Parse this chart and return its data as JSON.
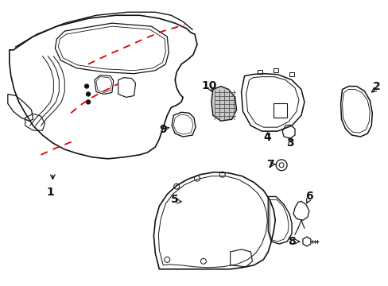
{
  "background_color": "#ffffff",
  "figsize": [
    4.89,
    3.6
  ],
  "dpi": 100,
  "line_color": "#111111",
  "red_color": "#dd0000",
  "label_color": "#111111",
  "lw": 1.0
}
